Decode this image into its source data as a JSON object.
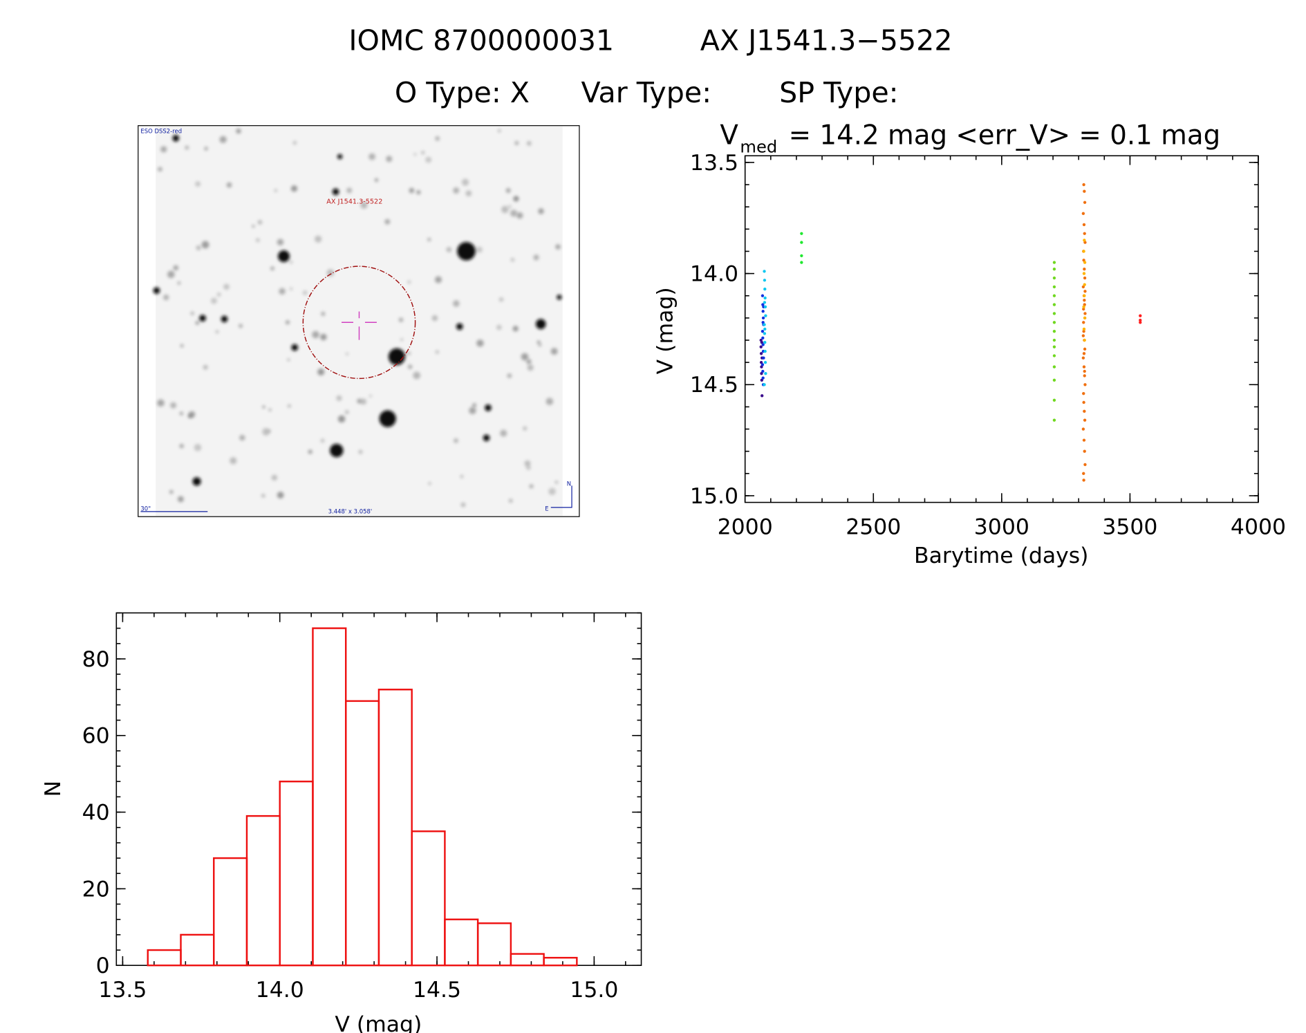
{
  "header": {
    "name": "IOMC 8700000031",
    "id": "AX J1541.3−5522",
    "types": [
      "O Type: X",
      "Var Type:",
      "SP Type:"
    ]
  },
  "finder": {
    "survey": "ESO DSS2-red",
    "target": "AX J1541.3-5522",
    "scale": "30\"",
    "size": "3.448' x 3.058'",
    "north": "N",
    "east": "E"
  },
  "chart_data": [
    {
      "type": "scatter",
      "title": "V",
      "title_sub": "med",
      "title_rest": "= 14.2 mag <err_V> = 0.1 mag",
      "xlabel": "Barytime (days)",
      "ylabel": "V (mag)",
      "xlim": [
        2000,
        4000
      ],
      "xticks": [
        2000,
        2500,
        3000,
        3500,
        4000
      ],
      "ylim": [
        15.03,
        13.47
      ],
      "yticks": [
        13.5,
        {
          "value": 14.0,
          "label": "14.0"
        },
        14.5,
        {
          "value": 15.0,
          "label": "15.0"
        }
      ],
      "series": [
        {
          "color": "#3a0a8c",
          "x": [
            2062,
            2062,
            2063,
            2063,
            2064,
            2064,
            2065,
            2065,
            2066,
            2066
          ],
          "values": [
            14.3,
            14.33,
            14.36,
            14.4,
            14.42,
            14.45,
            14.48,
            14.31,
            14.55,
            14.38
          ]
        },
        {
          "color": "#1030e0",
          "x": [
            2068,
            2069,
            2070,
            2071,
            2072,
            2068,
            2069,
            2070,
            2071,
            2072,
            2068,
            2069,
            2070,
            2071,
            2072,
            2070
          ],
          "values": [
            14.1,
            14.14,
            14.17,
            14.2,
            14.23,
            14.26,
            14.29,
            14.32,
            14.35,
            14.38,
            14.41,
            14.44,
            14.47,
            14.5,
            14.15,
            14.22
          ]
        },
        {
          "color": "#10c8f0",
          "x": [
            2075,
            2076,
            2077,
            2078,
            2079,
            2080,
            2075,
            2076,
            2077,
            2078,
            2079,
            2080,
            2075,
            2076,
            2077
          ],
          "values": [
            13.99,
            14.03,
            14.07,
            14.11,
            14.15,
            14.19,
            14.23,
            14.27,
            14.31,
            14.35,
            14.4,
            14.45,
            14.5,
            14.13,
            14.25
          ]
        },
        {
          "color": "#20e830",
          "x": [
            2220,
            2220,
            2220,
            2220
          ],
          "values": [
            13.82,
            13.86,
            13.92,
            13.95
          ]
        },
        {
          "color": "#70d820",
          "x": [
            3205,
            3205,
            3205,
            3205,
            3205,
            3205,
            3205,
            3205,
            3205,
            3205,
            3205,
            3205,
            3205,
            3205,
            3205,
            3205
          ],
          "values": [
            13.95,
            13.98,
            14.02,
            14.06,
            14.1,
            14.14,
            14.18,
            14.22,
            14.26,
            14.3,
            14.33,
            14.37,
            14.42,
            14.48,
            14.57,
            14.66
          ]
        },
        {
          "color": "#f07010",
          "x": [
            3320,
            3322,
            3324,
            3318,
            3321,
            3323,
            3325,
            3319,
            3320,
            3322,
            3324,
            3318,
            3321,
            3323,
            3325,
            3319,
            3320,
            3322,
            3324,
            3318,
            3321,
            3323,
            3325,
            3319,
            3320,
            3322,
            3324,
            3318,
            3321,
            3323,
            3325,
            3319,
            3320,
            3322,
            3324,
            3318,
            3321,
            3323,
            3325,
            3319
          ],
          "values": [
            13.6,
            13.63,
            13.68,
            13.73,
            13.78,
            13.82,
            13.86,
            13.9,
            13.94,
            13.98,
            14.02,
            14.06,
            14.1,
            14.14,
            14.18,
            14.22,
            14.26,
            14.3,
            14.34,
            14.38,
            14.42,
            14.46,
            14.5,
            14.54,
            14.58,
            14.62,
            14.66,
            14.7,
            14.75,
            14.8,
            14.86,
            14.9,
            14.93,
            14.12,
            14.2,
            14.28,
            14.36,
            14.44,
            14.08,
            14.16
          ]
        },
        {
          "color": "#ffb400",
          "x": [
            3322,
            3320,
            3324,
            3321,
            3323,
            3322,
            3320,
            3324,
            3321,
            3323
          ],
          "values": [
            13.85,
            13.9,
            13.95,
            14.0,
            14.05,
            14.1,
            14.15,
            14.2,
            14.25,
            14.3
          ]
        },
        {
          "color": "#ff2020",
          "x": [
            3540,
            3540,
            3540
          ],
          "values": [
            14.19,
            14.21,
            14.22
          ]
        }
      ]
    },
    {
      "type": "histogram",
      "xlabel": "V (mag)",
      "ylabel": "N",
      "color": "#ee1111",
      "bins": [
        13.58,
        13.685,
        13.79,
        13.895,
        14.0,
        14.105,
        14.21,
        14.315,
        14.42,
        14.525,
        14.63,
        14.735,
        14.84,
        14.945
      ],
      "values": [
        4,
        8,
        28,
        39,
        48,
        88,
        69,
        72,
        35,
        12,
        11,
        3,
        2
      ],
      "xlim": [
        13.48,
        15.15
      ],
      "xticks": [
        13.5,
        {
          "value": 14.0,
          "label": "14.0"
        },
        14.5,
        {
          "value": 15.0,
          "label": "15.0"
        }
      ],
      "ylim": [
        0,
        92
      ],
      "yticks": [
        0,
        20,
        40,
        60,
        80
      ]
    }
  ]
}
